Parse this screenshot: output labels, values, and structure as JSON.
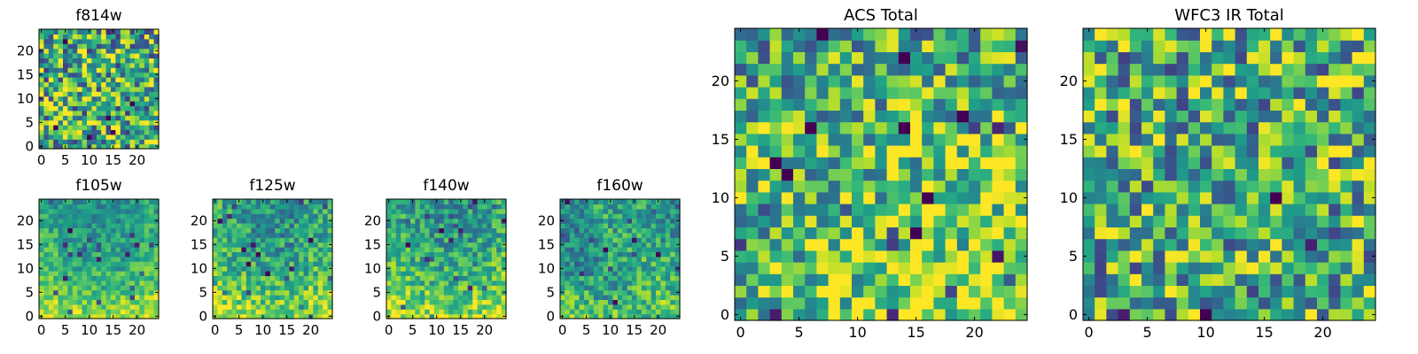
{
  "chart_data": [
    {
      "type": "heatmap",
      "title": "f814w",
      "xlabel": "",
      "ylabel": "",
      "xlim": [
        0,
        24
      ],
      "ylim": [
        0,
        24
      ],
      "xticks": [
        "0",
        "5",
        "10",
        "15",
        "20"
      ],
      "yticks": [
        "0",
        "5",
        "10",
        "15",
        "20"
      ],
      "colormap": "viridis",
      "grid": false,
      "seed": 11,
      "gradient": "none",
      "noise": 0.9
    },
    {
      "type": "heatmap",
      "title": "f105w",
      "xlabel": "",
      "ylabel": "",
      "xlim": [
        0,
        24
      ],
      "ylim": [
        0,
        24
      ],
      "xticks": [
        "0",
        "5",
        "10",
        "15",
        "20"
      ],
      "yticks": [
        "0",
        "5",
        "10",
        "15",
        "20"
      ],
      "colormap": "viridis",
      "grid": false,
      "seed": 23,
      "gradient": "bottom-bright",
      "noise": 0.35
    },
    {
      "type": "heatmap",
      "title": "f125w",
      "xlabel": "",
      "ylabel": "",
      "xlim": [
        0,
        24
      ],
      "ylim": [
        0,
        24
      ],
      "xticks": [
        "0",
        "5",
        "10",
        "15",
        "20"
      ],
      "yticks": [
        "0",
        "5",
        "10",
        "15",
        "20"
      ],
      "colormap": "viridis",
      "grid": false,
      "seed": 37,
      "gradient": "bottom-bright",
      "noise": 0.45
    },
    {
      "type": "heatmap",
      "title": "f140w",
      "xlabel": "",
      "ylabel": "",
      "xlim": [
        0,
        24
      ],
      "ylim": [
        0,
        24
      ],
      "xticks": [
        "0",
        "5",
        "10",
        "15",
        "20"
      ],
      "yticks": [
        "0",
        "5",
        "10",
        "15",
        "20"
      ],
      "colormap": "viridis",
      "grid": false,
      "seed": 41,
      "gradient": "bottom-bright",
      "noise": 0.45
    },
    {
      "type": "heatmap",
      "title": "f160w",
      "xlabel": "",
      "ylabel": "",
      "xlim": [
        0,
        24
      ],
      "ylim": [
        0,
        24
      ],
      "xticks": [
        "0",
        "5",
        "10",
        "15",
        "20"
      ],
      "yticks": [
        "0",
        "5",
        "10",
        "15",
        "20"
      ],
      "colormap": "viridis",
      "grid": false,
      "seed": 53,
      "gradient": "bottom-left-bright",
      "noise": 0.45
    },
    {
      "type": "heatmap",
      "title": "ACS Total",
      "xlabel": "",
      "ylabel": "",
      "xlim": [
        0,
        24
      ],
      "ylim": [
        0,
        24
      ],
      "xticks": [
        "0",
        "5",
        "10",
        "15",
        "20"
      ],
      "yticks": [
        "0",
        "5",
        "10",
        "15",
        "20"
      ],
      "colormap": "viridis",
      "grid": false,
      "seed": 67,
      "gradient": "bottom-right-bright",
      "noise": 0.75
    },
    {
      "type": "heatmap",
      "title": "WFC3 IR Total",
      "xlabel": "",
      "ylabel": "",
      "xlim": [
        0,
        24
      ],
      "ylim": [
        0,
        24
      ],
      "xticks": [
        "0",
        "5",
        "10",
        "15",
        "20"
      ],
      "yticks": [
        "0",
        "5",
        "10",
        "15",
        "20"
      ],
      "colormap": "viridis",
      "grid": false,
      "seed": 79,
      "gradient": "none",
      "noise": 0.85
    }
  ]
}
